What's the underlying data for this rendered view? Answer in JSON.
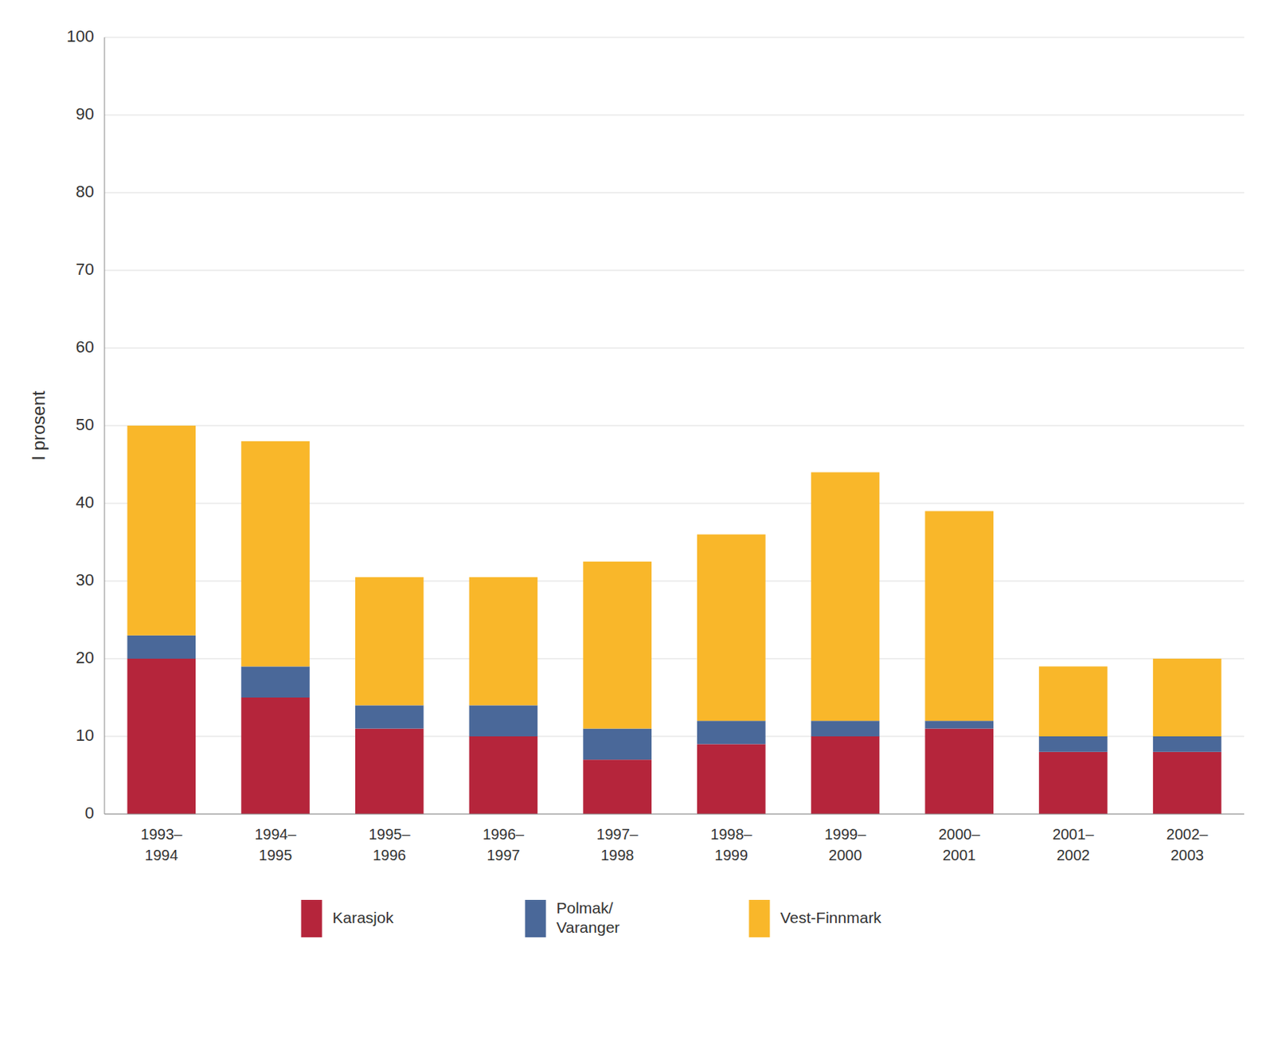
{
  "chart_data": {
    "type": "bar",
    "stacked": true,
    "y_label": "I prosent",
    "categories": [
      "1993–\n1994",
      "1994–\n1995",
      "1995–\n1996",
      "1996–\n1997",
      "1997–\n1998",
      "1998–\n1999",
      "1999–\n2000",
      "2000–\n2001",
      "2001–\n2002",
      "2002–\n2003"
    ],
    "series": [
      {
        "name": "Karasjok",
        "color": "#b5253b",
        "values": [
          20,
          15,
          11,
          10,
          7,
          9,
          10,
          11,
          8,
          8
        ]
      },
      {
        "name": "Polmak/\nVaranger",
        "color": "#4a6899",
        "values": [
          3,
          4,
          3,
          4,
          4,
          3,
          2,
          1,
          2,
          2
        ]
      },
      {
        "name": "Vest-Finnmark",
        "color": "#f9b72a",
        "values": [
          27,
          29,
          16.5,
          16.5,
          21.5,
          24,
          32,
          27,
          9,
          10
        ]
      }
    ],
    "ylim": [
      0,
      100
    ],
    "yticks": [
      0,
      10,
      20,
      30,
      40,
      50,
      60,
      70,
      80,
      90,
      100
    ],
    "grid": true,
    "legend": "bottom"
  }
}
